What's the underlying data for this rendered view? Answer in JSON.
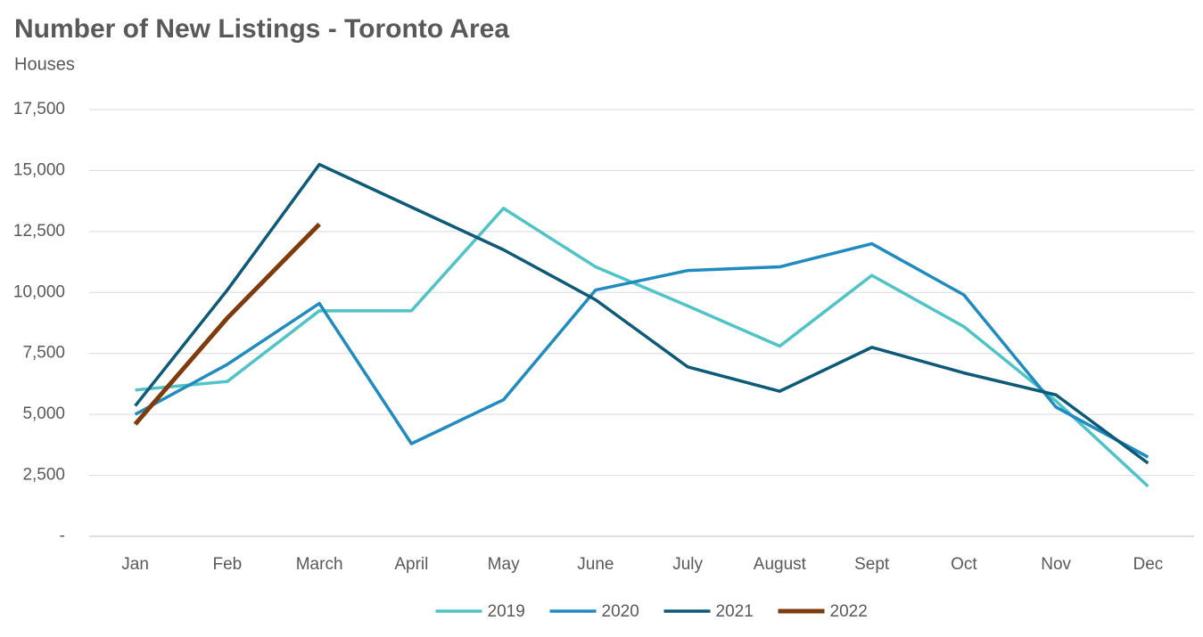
{
  "chart_data": {
    "type": "line",
    "title": "Number of New Listings - Toronto Area",
    "subtitle": "Houses",
    "categories": [
      "Jan",
      "Feb",
      "March",
      "April",
      "May",
      "June",
      "July",
      "August",
      "Sept",
      "Oct",
      "Nov",
      "Dec"
    ],
    "series": [
      {
        "name": "2019",
        "color": "#4fc3c7",
        "values": [
          6000,
          6350,
          9250,
          9250,
          13450,
          11050,
          9450,
          7800,
          10700,
          8600,
          5550,
          2050
        ]
      },
      {
        "name": "2020",
        "color": "#1f8bc0",
        "values": [
          5000,
          7050,
          9550,
          3800,
          5600,
          10100,
          10900,
          11050,
          12000,
          9900,
          5300,
          3250
        ]
      },
      {
        "name": "2021",
        "color": "#0d5a78",
        "values": [
          5350,
          10100,
          15250,
          13500,
          11750,
          9700,
          6950,
          5950,
          7750,
          6700,
          5800,
          3000
        ]
      },
      {
        "name": "2022",
        "color": "#7f3b0c",
        "values": [
          4600,
          8950,
          12800,
          null,
          null,
          null,
          null,
          null,
          null,
          null,
          null,
          null
        ]
      }
    ],
    "ylim": [
      0,
      17500
    ],
    "yticks": [
      {
        "value": 0,
        "label": "-"
      },
      {
        "value": 2500,
        "label": "2,500"
      },
      {
        "value": 5000,
        "label": "5,000"
      },
      {
        "value": 7500,
        "label": "7,500"
      },
      {
        "value": 10000,
        "label": "10,000"
      },
      {
        "value": 12500,
        "label": "12,500"
      },
      {
        "value": 15000,
        "label": "15,000"
      },
      {
        "value": 17500,
        "label": "17,500"
      }
    ],
    "grid": true,
    "legend": "bottom"
  }
}
